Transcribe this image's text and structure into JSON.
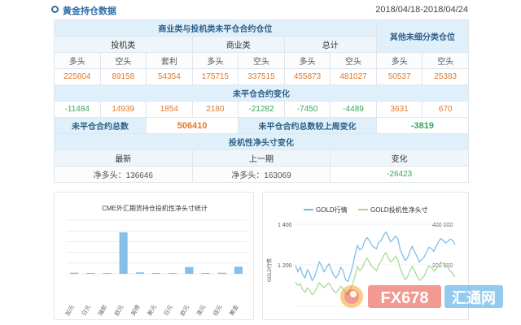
{
  "header": {
    "title": "黄金持仓数据",
    "date_range": "2018/04/18-2018/04/24"
  },
  "table": {
    "main_header": "商业类与投机类未平仓合约仓位",
    "other_header": "其他未细分类仓位",
    "group_spec": "投机类",
    "group_comm": "商业类",
    "group_total": "总计",
    "col_long": "多头",
    "col_short": "空头",
    "col_arb": "套利",
    "positions": [
      "225804",
      "89158",
      "54354",
      "175715",
      "337515",
      "455873",
      "481027",
      "50537",
      "25383"
    ],
    "change_header": "未平仓合约变化",
    "changes": [
      "-11484",
      "14939",
      "1854",
      "2180",
      "-21282",
      "-7450",
      "-4489",
      "3631",
      "670"
    ],
    "oi_total_label": "未平仓合约总数",
    "oi_total_value": "506410",
    "oi_week_label": "未平仓合约总数较上周变化",
    "oi_week_value": "-3819",
    "net_header": "投机性净头寸变化",
    "latest_label": "最新",
    "previous_label": "上一期",
    "change_label": "变化",
    "latest_value": "净多头：136646",
    "previous_value": "净多头：163069",
    "change_value": "-26423"
  },
  "chart_data": [
    {
      "type": "bar",
      "title": "CME外汇期货持仓投机性净头寸统计",
      "categories": [
        "加元",
        "日元",
        "瑞郎",
        "欧元",
        "英镑",
        "美元",
        "日元",
        "欧元",
        "澳元",
        "纽元",
        "黄金"
      ],
      "values": [
        1.5,
        0.2,
        0.2,
        58,
        2.0,
        0.2,
        0.2,
        9.5,
        0.3,
        1.5,
        10
      ],
      "ylim": [
        0,
        75
      ],
      "color": "#85bfe8",
      "grid": true
    },
    {
      "type": "line",
      "legend": [
        "GOLD行情",
        "GOLD投机性净头寸"
      ],
      "colors": [
        "#76b9e6",
        "#a5d88a"
      ],
      "ylabel": "GOLD行情",
      "y_left_ticks": [
        "1 400",
        "1 200"
      ],
      "y_right_ticks": [
        "400 000",
        "200 000"
      ],
      "series": [
        {
          "name": "GOLD行情",
          "values": [
            1248,
            1222,
            1241,
            1210,
            1196,
            1230,
            1214,
            1186,
            1201,
            1232,
            1262,
            1244,
            1222,
            1238,
            1254,
            1232,
            1207,
            1197,
            1212,
            1240,
            1226,
            1190,
            1182,
            1210,
            1246,
            1292,
            1330,
            1311,
            1318,
            1346,
            1362,
            1350,
            1332,
            1322,
            1316,
            1344,
            1350,
            1372,
            1385,
            1364,
            1344,
            1356,
            1368,
            1356,
            1312,
            1290,
            1268,
            1278,
            1304,
            1326,
            1304,
            1284,
            1262,
            1272,
            1282,
            1302,
            1322,
            1318,
            1306,
            1324,
            1344,
            1358,
            1350,
            1340,
            1346,
            1356,
            1350,
            1334
          ]
        },
        {
          "name": "GOLD投机性净头寸",
          "values": [
            1180,
            1166,
            1172,
            1148,
            1138,
            1156,
            1146,
            1128,
            1138,
            1156,
            1176,
            1166,
            1156,
            1168,
            1176,
            1160,
            1144,
            1136,
            1146,
            1162,
            1152,
            1138,
            1126,
            1146,
            1172,
            1206,
            1242,
            1226,
            1236,
            1262,
            1278,
            1262,
            1244,
            1236,
            1226,
            1252,
            1266,
            1288,
            1300,
            1276,
            1262,
            1270,
            1286,
            1270,
            1234,
            1212,
            1190,
            1200,
            1224,
            1244,
            1226,
            1204,
            1186,
            1192,
            1204,
            1226,
            1246,
            1240,
            1226,
            1232,
            1246,
            1262,
            1256,
            1244,
            1240,
            1226,
            1214,
            1200
          ]
        }
      ],
      "ylim": [
        1080,
        1420
      ]
    }
  ],
  "watermark": {
    "brand": "FX678",
    "cn": "汇通网"
  }
}
